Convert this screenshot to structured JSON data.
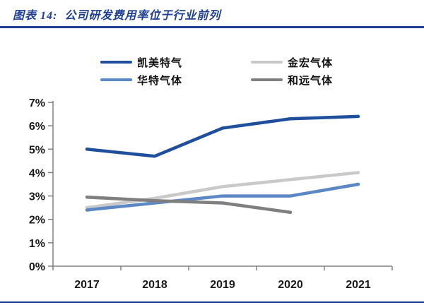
{
  "title": "图表 14:  公司研发费用率位于行业前列",
  "theme": {
    "accent": "#1F3F94",
    "axis_color": "#808080",
    "tick_text_color": "#1a1a1a"
  },
  "chart_data": {
    "type": "line",
    "categories": [
      "2017",
      "2018",
      "2019",
      "2020",
      "2021"
    ],
    "series": [
      {
        "name": "凯美特气",
        "color": "#1F4E9C",
        "values": [
          5.0,
          4.7,
          5.9,
          6.3,
          6.4
        ]
      },
      {
        "name": "金宏气体",
        "color": "#C9C9C9",
        "values": [
          2.5,
          2.9,
          3.4,
          3.7,
          4.0
        ]
      },
      {
        "name": "华特气体",
        "color": "#5B87C5",
        "values": [
          2.4,
          2.7,
          3.0,
          3.0,
          3.5
        ]
      },
      {
        "name": "和远气体",
        "color": "#7F7F7F",
        "values": [
          2.95,
          2.8,
          2.7,
          2.3,
          null
        ]
      }
    ],
    "ylim": [
      0,
      7
    ],
    "ytick_labels": [
      "0%",
      "1%",
      "2%",
      "3%",
      "4%",
      "5%",
      "6%",
      "7%"
    ],
    "xlabel": "",
    "ylabel": "",
    "grid": false,
    "legend_position": "top"
  }
}
